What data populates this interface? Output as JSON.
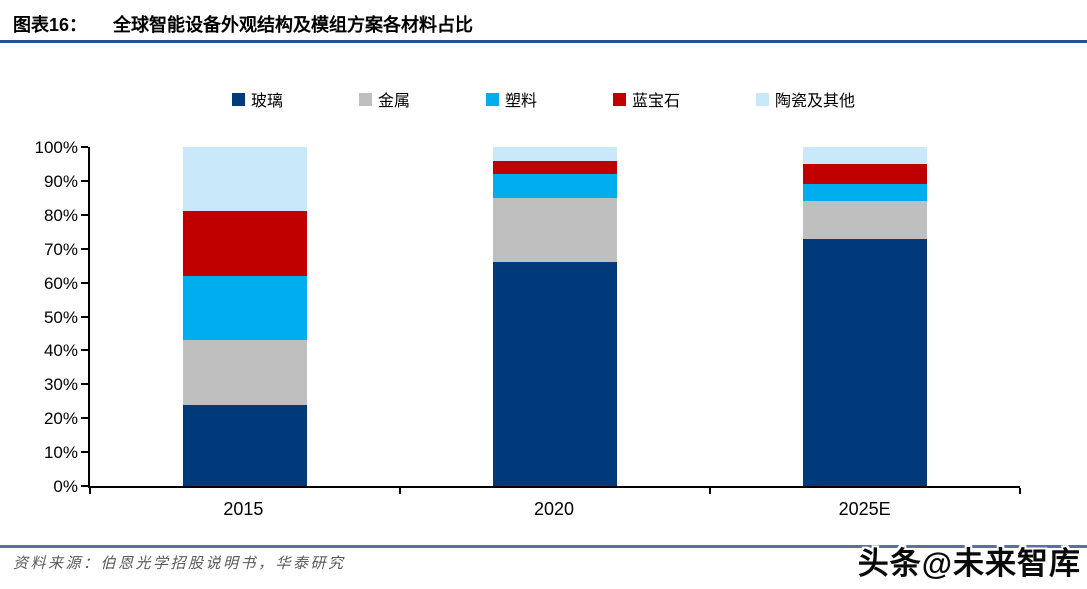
{
  "header": {
    "figure_label": "图表16：",
    "title": "全球智能设备外观结构及模组方案各材料占比"
  },
  "footer": {
    "source": "资料来源：伯恩光学招股说明书，华泰研究",
    "watermark": "头条@未来智库"
  },
  "colors": {
    "title_rule": "#27538a",
    "footer_rule": "#5d6f9b",
    "axis": "#000000",
    "background": "#ffffff"
  },
  "chart_data": {
    "type": "bar",
    "stacked": true,
    "unit": "%",
    "title": "全球智能设备外观结构及模组方案各材料占比",
    "xlabel": "",
    "ylabel": "",
    "categories": [
      "2015",
      "2020",
      "2025E"
    ],
    "series": [
      {
        "name": "玻璃",
        "color": "#003a7a",
        "values": [
          24,
          66,
          73
        ]
      },
      {
        "name": "金属",
        "color": "#bfbfbf",
        "values": [
          19,
          19,
          11
        ]
      },
      {
        "name": "塑料",
        "color": "#00aeef",
        "values": [
          19,
          7,
          5
        ]
      },
      {
        "name": "蓝宝石",
        "color": "#c00000",
        "values": [
          19,
          4,
          6
        ]
      },
      {
        "name": "陶瓷及其他",
        "color": "#c9e9fb",
        "values": [
          19,
          4,
          5
        ]
      }
    ],
    "ylim": [
      0,
      100
    ],
    "y_ticks": [
      "100%",
      "90%",
      "80%",
      "70%",
      "60%",
      "50%",
      "40%",
      "30%",
      "20%",
      "10%",
      "0%"
    ],
    "grid": false,
    "legend_position": "top"
  }
}
